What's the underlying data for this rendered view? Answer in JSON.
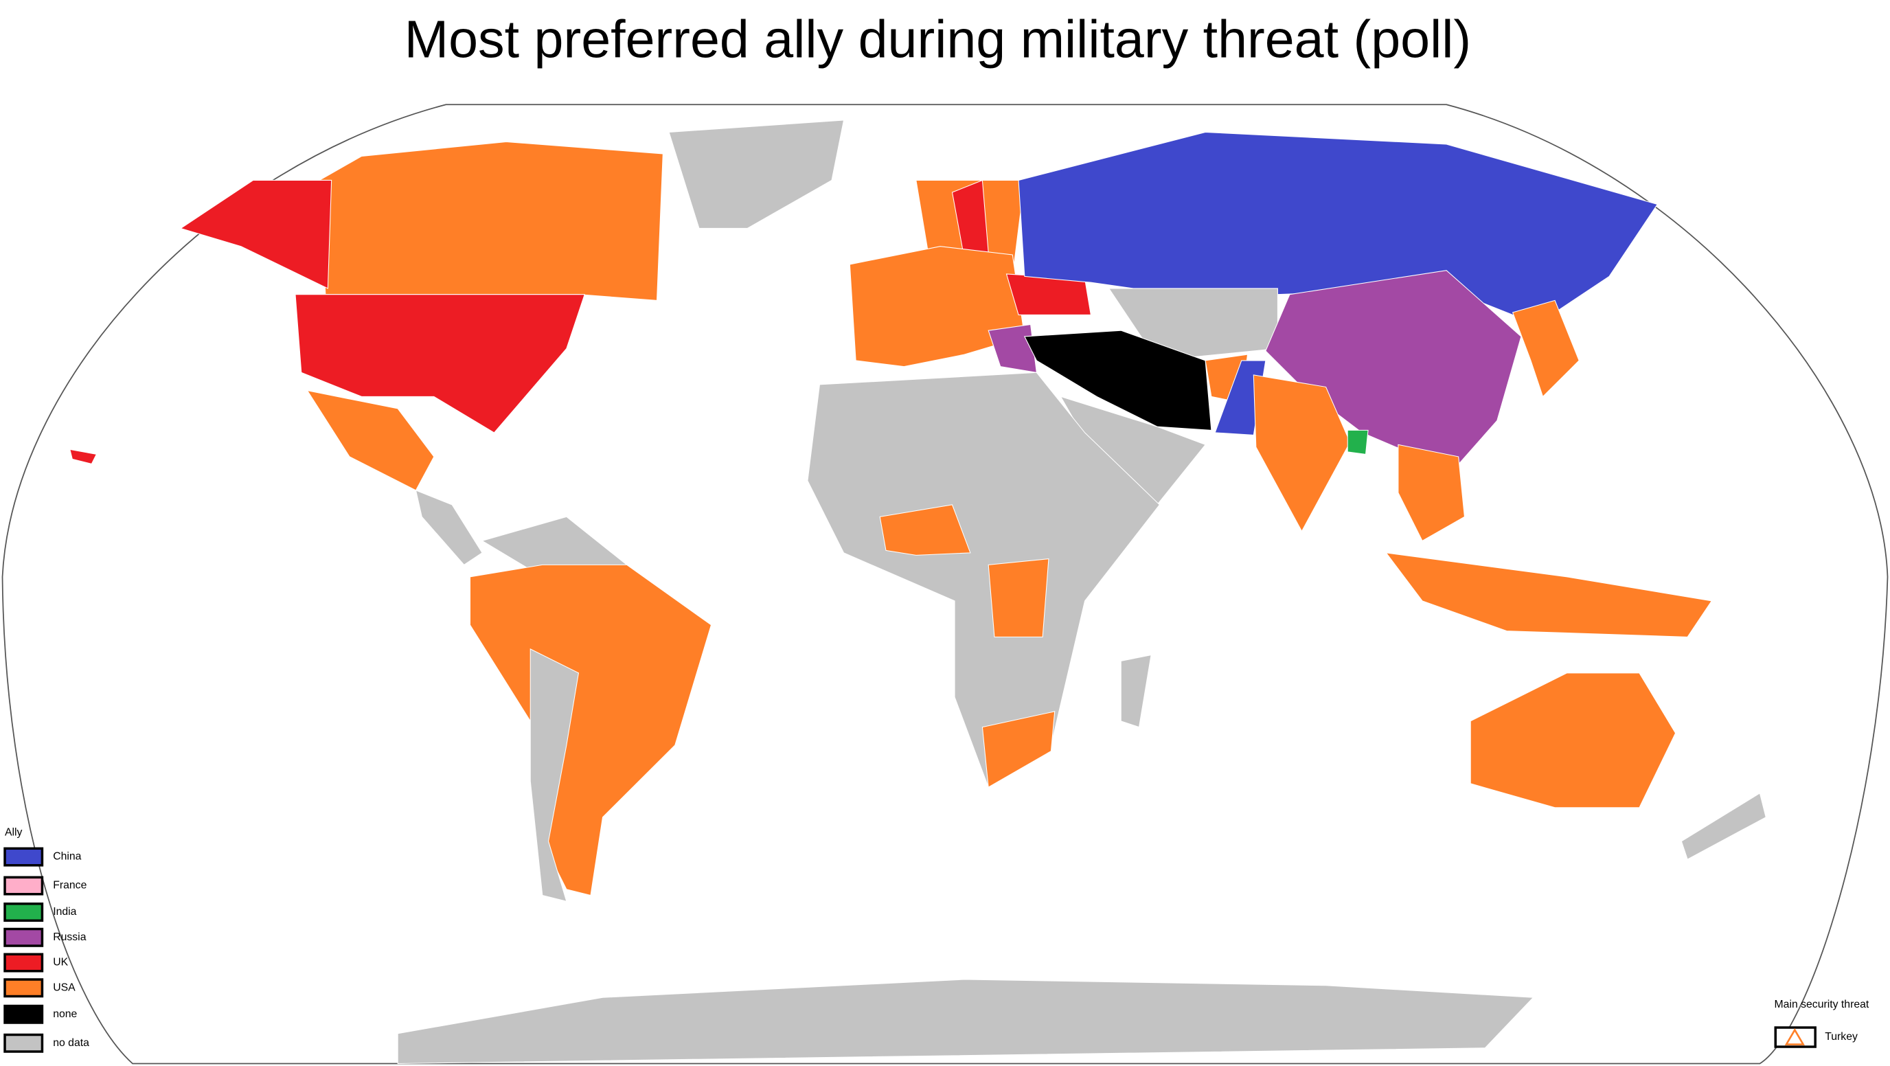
{
  "title": "Most preferred ally during military threat (poll)",
  "legend": {
    "title": "Ally",
    "items": [
      {
        "label": "China",
        "color": "#3f48cc"
      },
      {
        "label": "France",
        "color": "#ffaec9"
      },
      {
        "label": "India",
        "color": "#22b14c"
      },
      {
        "label": "Russia",
        "color": "#a349a4"
      },
      {
        "label": "UK",
        "color": "#ed1c24"
      },
      {
        "label": "USA",
        "color": "#ff7f27"
      },
      {
        "label": "none",
        "color": "#000000"
      },
      {
        "label": "no data",
        "color": "#c3c3c3"
      }
    ]
  },
  "threat_legend": {
    "title": "Main security threat",
    "items": [
      {
        "label": "Turkey"
      }
    ]
  }
}
